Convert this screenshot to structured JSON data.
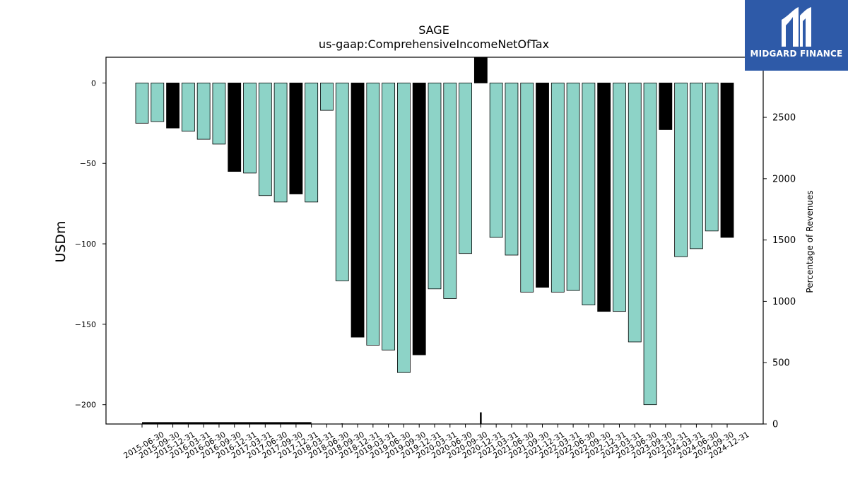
{
  "brand": {
    "logo_text": "MIDGARD FINANCE"
  },
  "colors": {
    "quarterly": "#8dd3c7",
    "annual": "#000000",
    "logo_bg": "#2e5aa8"
  },
  "chart_data": {
    "type": "bar",
    "title": "SAGE",
    "subtitle": "us-gaap:ComprehensiveIncomeNetOfTax",
    "ylabel": "USDm",
    "y2label": "Percentage of Revenues",
    "ylim": [
      -212,
      16
    ],
    "y2lim": [
      0,
      2990
    ],
    "yticks": [
      0,
      -50,
      -100,
      -150,
      -200
    ],
    "y2ticks": [
      0,
      500,
      1000,
      1500,
      2000,
      2500
    ],
    "grid": false,
    "categories": [
      "2015-06-30",
      "2015-09-30",
      "2015-12-31",
      "2016-03-31",
      "2016-06-30",
      "2016-09-30",
      "2016-12-31",
      "2017-03-31",
      "2017-06-30",
      "2017-09-30",
      "2017-12-31",
      "2018-03-31",
      "2018-06-30",
      "2018-09-30",
      "2018-12-31",
      "2019-03-31",
      "2019-06-30",
      "2019-09-30",
      "2019-12-31",
      "2020-03-31",
      "2020-06-30",
      "2020-09-30",
      "2020-12-31",
      "2021-03-31",
      "2021-06-30",
      "2021-09-30",
      "2021-12-31",
      "2022-03-31",
      "2022-06-30",
      "2022-09-30",
      "2022-12-31",
      "2023-03-31",
      "2023-06-30",
      "2023-09-30",
      "2023-12-31",
      "2024-03-31",
      "2024-06-30",
      "2024-09-30",
      "2024-12-31"
    ],
    "values": [
      -25,
      -24,
      -28,
      -30,
      -35,
      -38,
      -55,
      -56,
      -70,
      -74,
      -69,
      -74,
      -17,
      -123,
      -158,
      -163,
      -166,
      -180,
      -169,
      -128,
      -134,
      -106,
      16,
      -96,
      -107,
      -130,
      -127,
      -130,
      -129,
      -138,
      -142,
      -142,
      -161,
      -200,
      -29,
      -108,
      -103,
      -92,
      -96
    ],
    "period_type": [
      "Q",
      "Q",
      "FY",
      "Q",
      "Q",
      "Q",
      "FY",
      "Q",
      "Q",
      "Q",
      "FY",
      "Q",
      "Q",
      "Q",
      "FY",
      "Q",
      "Q",
      "Q",
      "FY",
      "Q",
      "Q",
      "Q",
      "FY",
      "Q",
      "Q",
      "Q",
      "FY",
      "Q",
      "Q",
      "Q",
      "FY",
      "Q",
      "Q",
      "Q",
      "FY",
      "Q",
      "Q",
      "Q",
      "FY"
    ],
    "pct_of_revenues": [
      8,
      8,
      8,
      8,
      8,
      8,
      8,
      8,
      8,
      8,
      8,
      8,
      null,
      5,
      null,
      null,
      null,
      null,
      null,
      null,
      null,
      null,
      95,
      null,
      null,
      null,
      null,
      null,
      null,
      null,
      null,
      null,
      null,
      null,
      null,
      null,
      null,
      null,
      null
    ]
  }
}
